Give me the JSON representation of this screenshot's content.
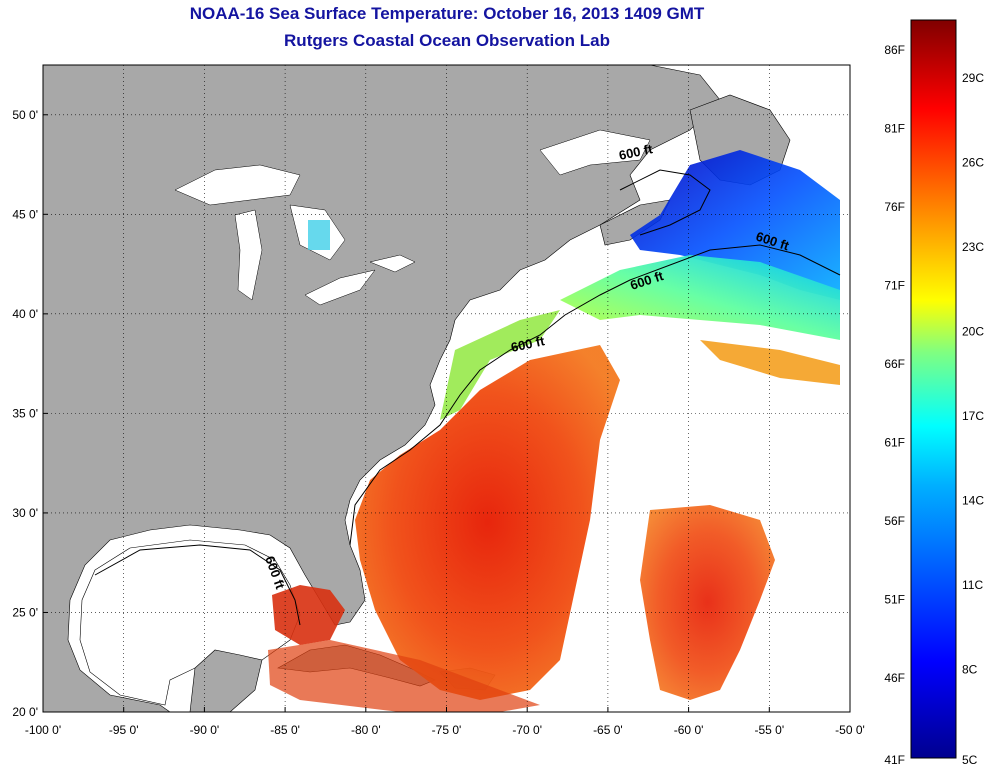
{
  "title": "NOAA-16 Sea Surface Temperature:  October 16, 2013 1409 GMT",
  "subtitle": "Rutgers Coastal Ocean Observation Lab",
  "axes": {
    "x_ticks": [
      "-100 0'",
      "-95 0'",
      "-90 0'",
      "-85 0'",
      "-80 0'",
      "-75 0'",
      "-70 0'",
      "-65 0'",
      "-60 0'",
      "-55 0'",
      "-50 0'"
    ],
    "y_ticks": [
      "20 0'",
      "25 0'",
      "30 0'",
      "35 0'",
      "40 0'",
      "45 0'",
      "50 0'"
    ],
    "lon_range": [
      -100,
      -50
    ],
    "lat_range": [
      20,
      52.5
    ]
  },
  "contour_labels": [
    "600 ft",
    "600 ft",
    "600 ft",
    "600 ft",
    "600 ft"
  ],
  "colorbar": {
    "fahrenheit": [
      "86F",
      "81F",
      "76F",
      "71F",
      "66F",
      "61F",
      "56F",
      "51F",
      "46F",
      "41F"
    ],
    "celsius": [
      "29C",
      "26C",
      "23C",
      "20C",
      "17C",
      "14C",
      "11C",
      "8C",
      "5C"
    ],
    "gradient": [
      "#00008f",
      "#0000ff",
      "#0080ff",
      "#00ffff",
      "#80ff80",
      "#ffff00",
      "#ff8000",
      "#ff0000",
      "#800000"
    ]
  },
  "colors": {
    "land": "#a8a8a8",
    "title": "#1414a0",
    "no_data": "#ffffff"
  }
}
